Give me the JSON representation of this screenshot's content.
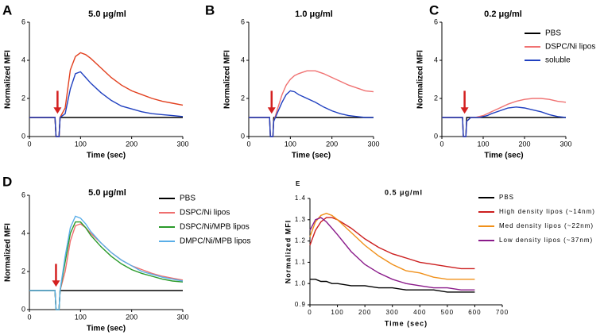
{
  "chart_data": [
    {
      "type": "line",
      "panel": "A",
      "title": "5.0 μg/ml",
      "xlabel": "Time (sec)",
      "ylabel": "Normalized MFI",
      "xlim": [
        0,
        300
      ],
      "ylim": [
        0,
        6
      ],
      "xticks": [
        0,
        100,
        200,
        300
      ],
      "yticks": [
        0,
        2,
        4,
        6
      ],
      "arrow_x": 55,
      "x": [
        0,
        50,
        52,
        58,
        60,
        70,
        80,
        90,
        100,
        110,
        120,
        140,
        160,
        180,
        200,
        220,
        240,
        260,
        280,
        300
      ],
      "series": [
        {
          "color": "#000000",
          "values": [
            1,
            1,
            0,
            0,
            1,
            1,
            1,
            1,
            1,
            1,
            1,
            1,
            1,
            1,
            1,
            1,
            1,
            1,
            1,
            1
          ]
        },
        {
          "color": "#e2401f",
          "values": [
            1,
            1,
            0,
            0,
            1,
            1.5,
            3.5,
            4.2,
            4.4,
            4.3,
            4.1,
            3.6,
            3.1,
            2.7,
            2.4,
            2.2,
            2.0,
            1.85,
            1.75,
            1.65
          ]
        },
        {
          "color": "#2040c0",
          "values": [
            1,
            1,
            0,
            0,
            1,
            1.2,
            2.5,
            3.3,
            3.4,
            3.1,
            2.8,
            2.3,
            1.9,
            1.6,
            1.45,
            1.3,
            1.2,
            1.15,
            1.1,
            1.05
          ]
        }
      ]
    },
    {
      "type": "line",
      "panel": "B",
      "title": "1.0 μg/ml",
      "xlabel": "Time (sec)",
      "ylabel": "Normalized MFI",
      "xlim": [
        0,
        300
      ],
      "ylim": [
        0,
        6
      ],
      "xticks": [
        0,
        100,
        200,
        300
      ],
      "yticks": [
        0,
        2,
        4,
        6
      ],
      "arrow_x": 55,
      "x": [
        0,
        50,
        52,
        58,
        60,
        70,
        80,
        90,
        100,
        110,
        120,
        140,
        160,
        180,
        200,
        220,
        240,
        260,
        280,
        300
      ],
      "series": [
        {
          "color": "#000000",
          "values": [
            1,
            1,
            0,
            0,
            1,
            1,
            1,
            1,
            1,
            1,
            1,
            1,
            1,
            1,
            1,
            1,
            1,
            1,
            1,
            1
          ]
        },
        {
          "color": "#f07272",
          "values": [
            1,
            1,
            0,
            0,
            0.8,
            1.5,
            2.2,
            2.7,
            3.0,
            3.2,
            3.3,
            3.45,
            3.45,
            3.3,
            3.1,
            2.9,
            2.7,
            2.55,
            2.4,
            2.35
          ]
        },
        {
          "color": "#2040c0",
          "values": [
            1,
            1,
            0,
            0,
            0.8,
            1.3,
            1.8,
            2.2,
            2.4,
            2.35,
            2.2,
            2.0,
            1.8,
            1.55,
            1.35,
            1.2,
            1.1,
            1.05,
            1.0,
            1.0
          ]
        }
      ]
    },
    {
      "type": "line",
      "panel": "C",
      "title": "0.2 μg/ml",
      "xlabel": "Time (sec)",
      "ylabel": "Normalized MFI",
      "xlim": [
        0,
        300
      ],
      "ylim": [
        0,
        6
      ],
      "xticks": [
        0,
        100,
        200,
        300
      ],
      "yticks": [
        0,
        2,
        4,
        6
      ],
      "arrow_x": 55,
      "x": [
        0,
        50,
        52,
        58,
        60,
        70,
        80,
        90,
        100,
        110,
        120,
        140,
        160,
        180,
        200,
        220,
        240,
        260,
        280,
        300
      ],
      "series": [
        {
          "name": "PBS",
          "color": "#000000",
          "values": [
            1,
            1,
            0,
            0,
            1,
            1,
            1,
            1,
            1,
            1,
            1,
            1,
            1,
            1,
            1,
            1,
            1,
            1,
            1,
            1
          ]
        },
        {
          "name": "DSPC/Ni lipos",
          "color": "#f07272",
          "values": [
            1,
            1,
            0,
            0,
            0.8,
            1.0,
            1.0,
            1.05,
            1.1,
            1.2,
            1.3,
            1.5,
            1.7,
            1.85,
            1.95,
            2.0,
            2.0,
            1.95,
            1.85,
            1.8
          ]
        },
        {
          "name": "soluble",
          "color": "#2040c0",
          "values": [
            1,
            1,
            0,
            0,
            0.8,
            1.0,
            1.0,
            1.0,
            1.05,
            1.1,
            1.2,
            1.35,
            1.5,
            1.55,
            1.5,
            1.4,
            1.3,
            1.15,
            1.05,
            1.0
          ]
        }
      ]
    },
    {
      "type": "line",
      "panel": "D",
      "title": "5.0 μg/ml",
      "xlabel": "Time (sec)",
      "ylabel": "Normalized MFI",
      "xlim": [
        0,
        300
      ],
      "ylim": [
        0,
        6
      ],
      "xticks": [
        0,
        100,
        200,
        300
      ],
      "yticks": [
        0,
        2,
        4,
        6
      ],
      "arrow_x": 52,
      "x": [
        0,
        50,
        52,
        58,
        60,
        70,
        80,
        90,
        100,
        110,
        120,
        140,
        160,
        180,
        200,
        220,
        240,
        260,
        280,
        300
      ],
      "series": [
        {
          "name": "PBS",
          "color": "#000000",
          "values": [
            1,
            1,
            0,
            0,
            1,
            1,
            1,
            1,
            1,
            1,
            1,
            1,
            1,
            1,
            1,
            1,
            1,
            1,
            1,
            1
          ]
        },
        {
          "name": "DSPC/Ni lipos",
          "color": "#ef6f6f",
          "values": [
            1,
            1,
            0,
            0,
            1,
            2.0,
            3.6,
            4.4,
            4.5,
            4.3,
            4.0,
            3.5,
            3.0,
            2.6,
            2.3,
            2.1,
            1.9,
            1.75,
            1.65,
            1.55
          ]
        },
        {
          "name": "DSPC/Ni/MPB lipos",
          "color": "#2a9a2a",
          "values": [
            1,
            1,
            0,
            0,
            1,
            2.5,
            4.0,
            4.6,
            4.6,
            4.3,
            3.9,
            3.3,
            2.8,
            2.4,
            2.1,
            1.9,
            1.75,
            1.6,
            1.5,
            1.45
          ]
        },
        {
          "name": "DMPC/Ni/MPB lipos",
          "color": "#5aaee8",
          "values": [
            1,
            1,
            0,
            0,
            1,
            2.8,
            4.3,
            4.9,
            4.8,
            4.5,
            4.1,
            3.5,
            3.0,
            2.6,
            2.3,
            2.0,
            1.85,
            1.7,
            1.6,
            1.5
          ]
        }
      ]
    },
    {
      "type": "line",
      "panel": "E",
      "title": "0.5 μg/ml",
      "xlabel": "Time (sec)",
      "ylabel": "Normalized MFI",
      "xlim": [
        0,
        700
      ],
      "ylim": [
        0.9,
        1.4
      ],
      "xticks": [
        0,
        100,
        200,
        300,
        400,
        500,
        600,
        700
      ],
      "yticks": [
        0.9,
        {
          "value": 1,
          "label": "1.0"
        },
        1.1,
        1.2,
        1.3,
        1.4
      ],
      "x": [
        0,
        20,
        40,
        60,
        80,
        100,
        150,
        200,
        250,
        300,
        350,
        400,
        450,
        500,
        550,
        600
      ],
      "series": [
        {
          "name": "PBS",
          "color": "#000000",
          "values": [
            1.02,
            1.02,
            1.01,
            1.01,
            1.0,
            1.0,
            0.99,
            0.99,
            0.98,
            0.98,
            0.97,
            0.97,
            0.97,
            0.96,
            0.96,
            0.96
          ]
        },
        {
          "name": "High density lipos (~14nm)",
          "color": "#cc1f1f",
          "values": [
            1.18,
            1.25,
            1.29,
            1.31,
            1.31,
            1.3,
            1.26,
            1.21,
            1.17,
            1.14,
            1.12,
            1.1,
            1.09,
            1.08,
            1.07,
            1.07
          ]
        },
        {
          "name": "Med density lipos (~22nm)",
          "color": "#f0901a",
          "values": [
            1.22,
            1.29,
            1.32,
            1.33,
            1.32,
            1.3,
            1.24,
            1.18,
            1.13,
            1.09,
            1.06,
            1.05,
            1.03,
            1.02,
            1.02,
            1.02
          ]
        },
        {
          "name": "Low density lipos (~37nm)",
          "color": "#8a1a8a",
          "values": [
            1.25,
            1.3,
            1.31,
            1.29,
            1.26,
            1.23,
            1.15,
            1.09,
            1.05,
            1.02,
            1.0,
            0.99,
            0.98,
            0.98,
            0.97,
            0.97
          ]
        }
      ]
    }
  ]
}
